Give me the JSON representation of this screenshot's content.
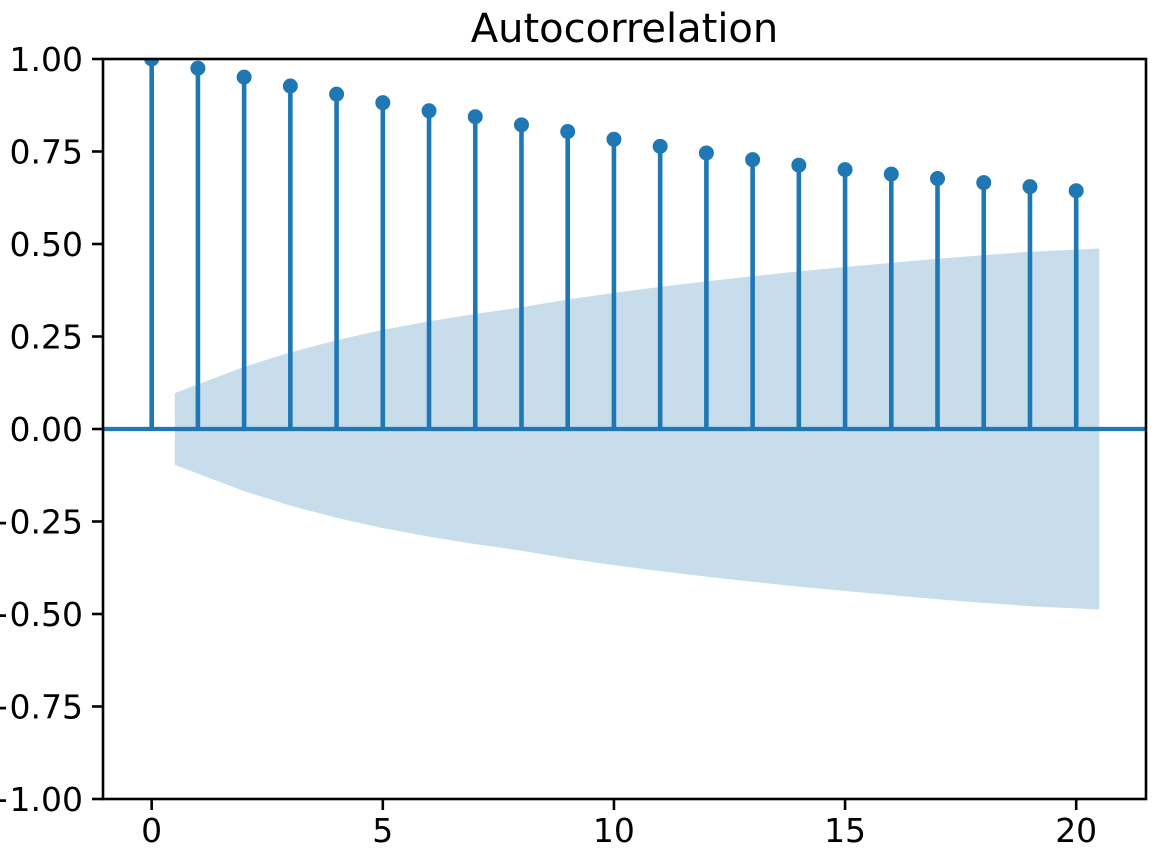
{
  "figure": {
    "title": "Autocorrelation"
  },
  "chart_data": {
    "type": "stem",
    "title": "Autocorrelation",
    "xlabel": "",
    "ylabel": "",
    "x": [
      0,
      1,
      2,
      3,
      4,
      5,
      6,
      7,
      8,
      9,
      10,
      11,
      12,
      13,
      14,
      15,
      16,
      17,
      18,
      19,
      20
    ],
    "acf_values": [
      1.0,
      0.975,
      0.951,
      0.927,
      0.905,
      0.882,
      0.86,
      0.844,
      0.822,
      0.804,
      0.783,
      0.764,
      0.746,
      0.728,
      0.713,
      0.701,
      0.689,
      0.677,
      0.666,
      0.655,
      0.644
    ],
    "confidence_band": {
      "x": [
        0.5,
        2,
        3,
        4,
        5,
        6,
        7,
        8,
        9,
        10,
        11,
        12,
        13,
        14,
        15,
        16,
        17,
        18,
        19,
        20.5
      ],
      "half_width": [
        0.097,
        0.168,
        0.207,
        0.24,
        0.268,
        0.291,
        0.311,
        0.329,
        0.35,
        0.368,
        0.384,
        0.399,
        0.413,
        0.426,
        0.438,
        0.449,
        0.46,
        0.47,
        0.479,
        0.488
      ],
      "description": "Symmetric confidence interval band around zero"
    },
    "xlim": [
      -1.053,
      21.51
    ],
    "ylim": [
      -1.0,
      1.0
    ],
    "xticks": [
      0,
      5,
      10,
      15,
      20
    ],
    "xtick_labels": [
      "0",
      "5",
      "10",
      "15",
      "20"
    ],
    "yticks": [
      1.0,
      0.75,
      0.5,
      0.25,
      0.0,
      -0.25,
      -0.5,
      -0.75,
      -1.0
    ],
    "ytick_labels": [
      "1.00",
      "0.75",
      "0.50",
      "0.25",
      "0.00",
      "−0.25",
      "−0.50",
      "−0.75",
      "−1.00"
    ],
    "grid": false,
    "legend": null,
    "colors": {
      "stem": "#1f77b4",
      "marker": "#1f77b4",
      "zero_line": "#1f77b4",
      "band": "rgba(31,119,180,0.25)",
      "spine": "#000000",
      "background": "#ffffff"
    }
  }
}
